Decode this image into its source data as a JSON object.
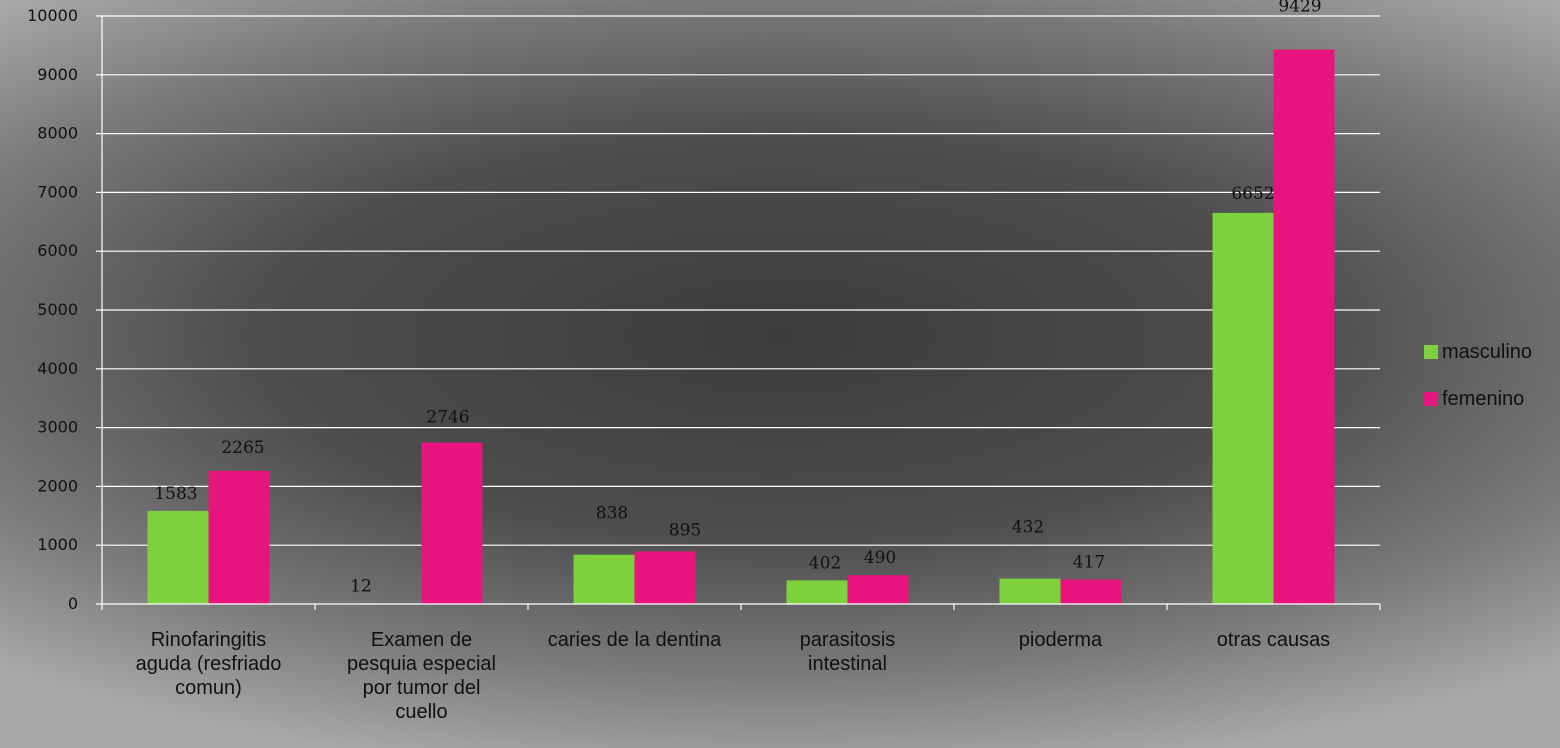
{
  "chart_data": {
    "type": "bar",
    "categories": [
      [
        "Rinofaringitis",
        "aguda (resfriado",
        "comun)"
      ],
      [
        "Examen de",
        "pesquia especial",
        "por tumor del",
        "cuello"
      ],
      [
        "caries de la dentina"
      ],
      [
        "parasitosis",
        "intestinal"
      ],
      [
        "pioderma"
      ],
      [
        "otras causas"
      ]
    ],
    "series": [
      {
        "name": "masculino",
        "color": "#7dd13c",
        "values": [
          1583,
          12,
          838,
          402,
          432,
          6652
        ]
      },
      {
        "name": "femenino",
        "color": "#e8157e",
        "values": [
          2265,
          2746,
          895,
          490,
          417,
          9429
        ]
      }
    ],
    "ylim": [
      0,
      10000
    ],
    "yticks": [
      0,
      1000,
      2000,
      3000,
      4000,
      5000,
      6000,
      7000,
      8000,
      9000,
      10000
    ],
    "grid": true,
    "legend_position": "right"
  }
}
